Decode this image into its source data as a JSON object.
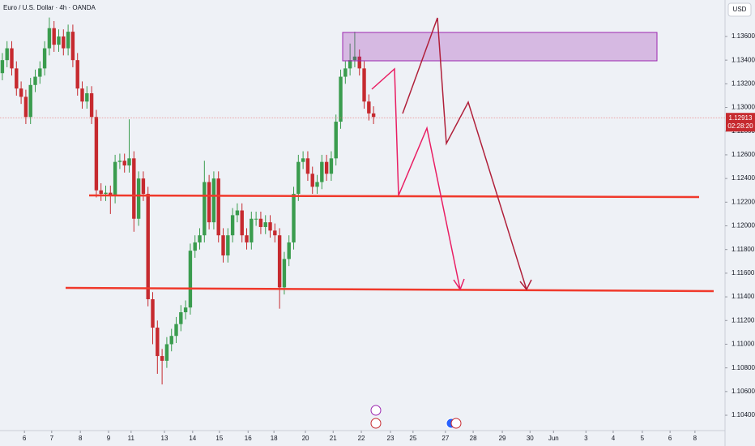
{
  "chart_data": {
    "type": "candlestick",
    "title": "Euro / U.S. Dollar · 4h · OANDA",
    "currency": "USD",
    "up_color": "#3a9c4e",
    "down_color": "#c62a2f",
    "last_price": 1.12913,
    "countdown": "02:28:20",
    "xlim": [
      -0.5,
      153.8
    ],
    "ylim": [
      1.10277,
      1.13908
    ],
    "xticks": [
      {
        "value": 4.7,
        "label": "6"
      },
      {
        "value": 10.5,
        "label": "7"
      },
      {
        "value": 16.6,
        "label": "8"
      },
      {
        "value": 22.6,
        "label": "9"
      },
      {
        "value": 27.4,
        "label": "11"
      },
      {
        "value": 34.5,
        "label": "13"
      },
      {
        "value": 40.5,
        "label": "14"
      },
      {
        "value": 46.2,
        "label": "15"
      },
      {
        "value": 52.3,
        "label": "16"
      },
      {
        "value": 57.8,
        "label": "18"
      },
      {
        "value": 64.5,
        "label": "20"
      },
      {
        "value": 70.4,
        "label": "21"
      },
      {
        "value": 76.4,
        "label": "22"
      },
      {
        "value": 82.6,
        "label": "23"
      },
      {
        "value": 87.4,
        "label": "25"
      },
      {
        "value": 94.3,
        "label": "27"
      },
      {
        "value": 100.2,
        "label": "28"
      },
      {
        "value": 106.4,
        "label": "29"
      },
      {
        "value": 112.3,
        "label": "30"
      },
      {
        "value": 117.3,
        "label": "Jun"
      },
      {
        "value": 124.2,
        "label": "3"
      },
      {
        "value": 130.0,
        "label": "4"
      },
      {
        "value": 136.2,
        "label": "5"
      },
      {
        "value": 142.1,
        "label": "6"
      },
      {
        "value": 147.4,
        "label": "8"
      }
    ],
    "yticks": [
      {
        "value": 1.136,
        "label": "1.13600"
      },
      {
        "value": 1.134,
        "label": "1.13400"
      },
      {
        "value": 1.132,
        "label": "1.13200"
      },
      {
        "value": 1.13,
        "label": "1.13000"
      },
      {
        "value": 1.128,
        "label": "1.12800"
      },
      {
        "value": 1.126,
        "label": "1.12600"
      },
      {
        "value": 1.124,
        "label": "1.12400"
      },
      {
        "value": 1.122,
        "label": "1.12200"
      },
      {
        "value": 1.12,
        "label": "1.12000"
      },
      {
        "value": 1.118,
        "label": "1.11800"
      },
      {
        "value": 1.116,
        "label": "1.11600"
      },
      {
        "value": 1.114,
        "label": "1.11400"
      },
      {
        "value": 1.112,
        "label": "1.11200"
      },
      {
        "value": 1.11,
        "label": "1.11000"
      },
      {
        "value": 1.108,
        "label": "1.10800"
      },
      {
        "value": 1.106,
        "label": "1.10600"
      },
      {
        "value": 1.104,
        "label": "1.10400"
      }
    ],
    "series": [
      {
        "x": [
          0,
          1,
          2,
          3,
          4,
          5,
          6,
          7,
          8,
          9,
          10,
          11,
          12,
          13,
          14,
          15,
          16,
          17,
          18,
          19,
          20,
          21,
          22,
          23,
          24,
          25,
          26,
          27,
          28,
          29,
          30,
          31,
          32,
          33,
          34,
          35,
          36,
          37,
          38,
          39,
          40,
          41,
          42,
          43,
          44,
          45,
          46,
          47,
          48,
          49,
          50,
          51,
          52,
          53,
          54,
          55,
          56,
          57,
          58,
          59,
          60,
          61,
          62,
          63,
          64,
          65,
          66,
          67,
          68,
          69,
          70,
          71,
          72,
          73,
          74,
          75,
          76,
          77,
          78,
          79
        ],
        "open": [
          1.1329,
          1.134,
          1.135,
          1.1333,
          1.1316,
          1.1309,
          1.1292,
          1.1319,
          1.1326,
          1.1333,
          1.135,
          1.1367,
          1.1353,
          1.136,
          1.135,
          1.1364,
          1.134,
          1.1316,
          1.1305,
          1.1312,
          1.1292,
          1.123,
          1.1227,
          1.1228,
          1.1225,
          1.1254,
          1.1255,
          1.1251,
          1.1257,
          1.1206,
          1.124,
          1.1227,
          1.1138,
          1.1114,
          1.109,
          1.1086,
          1.11,
          1.1107,
          1.1117,
          1.1127,
          1.1131,
          1.1179,
          1.1186,
          1.1192,
          1.1237,
          1.1203,
          1.124,
          1.1192,
          1.1175,
          1.1192,
          1.1209,
          1.1213,
          1.1192,
          1.1186,
          1.1206,
          1.1206,
          1.1199,
          1.1203,
          1.1196,
          1.1192,
          1.1148,
          1.1172,
          1.1186,
          1.1227,
          1.1254,
          1.1257,
          1.1244,
          1.1233,
          1.1237,
          1.1254,
          1.1244,
          1.1257,
          1.1288,
          1.1326,
          1.1333,
          1.134,
          1.1343,
          1.1333,
          1.1305,
          1.1295
        ],
        "high": [
          1.1346,
          1.1356,
          1.1356,
          1.1339,
          1.1322,
          1.1315,
          1.1325,
          1.1332,
          1.1339,
          1.1356,
          1.1376,
          1.1373,
          1.1366,
          1.1366,
          1.137,
          1.137,
          1.1346,
          1.1322,
          1.1318,
          1.1318,
          1.1298,
          1.1236,
          1.1234,
          1.1234,
          1.126,
          1.1261,
          1.1261,
          1.129,
          1.1263,
          1.1246,
          1.1246,
          1.1233,
          1.1144,
          1.112,
          1.1096,
          1.1106,
          1.1113,
          1.1123,
          1.1133,
          1.1137,
          1.1185,
          1.1192,
          1.1198,
          1.1255,
          1.1243,
          1.1246,
          1.1246,
          1.1198,
          1.1198,
          1.1215,
          1.1219,
          1.1219,
          1.1198,
          1.1212,
          1.1212,
          1.1212,
          1.1209,
          1.1209,
          1.1202,
          1.1198,
          1.1178,
          1.1192,
          1.1233,
          1.126,
          1.1263,
          1.1263,
          1.125,
          1.1243,
          1.126,
          1.126,
          1.1263,
          1.1294,
          1.1332,
          1.1339,
          1.1354,
          1.1364,
          1.1349,
          1.1339,
          1.1311,
          1.1301
        ],
        "low": [
          1.1323,
          1.1334,
          1.1327,
          1.131,
          1.1303,
          1.1286,
          1.1286,
          1.1313,
          1.132,
          1.1327,
          1.1344,
          1.1347,
          1.1347,
          1.1344,
          1.1344,
          1.1334,
          1.131,
          1.1299,
          1.1299,
          1.1286,
          1.1224,
          1.1221,
          1.1221,
          1.121,
          1.1219,
          1.1248,
          1.1245,
          1.1245,
          1.1195,
          1.12,
          1.1221,
          1.1132,
          1.11,
          1.1075,
          1.1066,
          1.108,
          1.1094,
          1.1101,
          1.1111,
          1.1121,
          1.1125,
          1.1173,
          1.118,
          1.1186,
          1.1197,
          1.1197,
          1.1186,
          1.1169,
          1.1169,
          1.1186,
          1.1203,
          1.1186,
          1.118,
          1.118,
          1.12,
          1.1193,
          1.1193,
          1.119,
          1.1186,
          1.113,
          1.1142,
          1.1166,
          1.118,
          1.1221,
          1.1248,
          1.1238,
          1.1227,
          1.1227,
          1.1231,
          1.1238,
          1.1238,
          1.1251,
          1.1282,
          1.132,
          1.1327,
          1.1334,
          1.1327,
          1.1299,
          1.1289,
          1.1286
        ],
        "close": [
          1.134,
          1.135,
          1.1333,
          1.1316,
          1.1309,
          1.1292,
          1.1319,
          1.1326,
          1.1333,
          1.135,
          1.1367,
          1.1353,
          1.136,
          1.135,
          1.1364,
          1.134,
          1.1316,
          1.1305,
          1.1312,
          1.1292,
          1.123,
          1.1227,
          1.1228,
          1.1225,
          1.1254,
          1.1255,
          1.1251,
          1.1257,
          1.1206,
          1.124,
          1.1227,
          1.1138,
          1.1114,
          1.109,
          1.1086,
          1.11,
          1.1107,
          1.1117,
          1.1127,
          1.1131,
          1.1179,
          1.1186,
          1.1192,
          1.1237,
          1.1203,
          1.124,
          1.1192,
          1.1175,
          1.1192,
          1.1209,
          1.1213,
          1.1192,
          1.1186,
          1.1206,
          1.1206,
          1.1199,
          1.1203,
          1.1196,
          1.1192,
          1.1148,
          1.1172,
          1.1186,
          1.1227,
          1.1254,
          1.1257,
          1.1244,
          1.1233,
          1.1237,
          1.1254,
          1.1244,
          1.1257,
          1.1288,
          1.1326,
          1.1333,
          1.134,
          1.1343,
          1.1333,
          1.1305,
          1.1295,
          1.1292
        ]
      }
    ]
  }
}
